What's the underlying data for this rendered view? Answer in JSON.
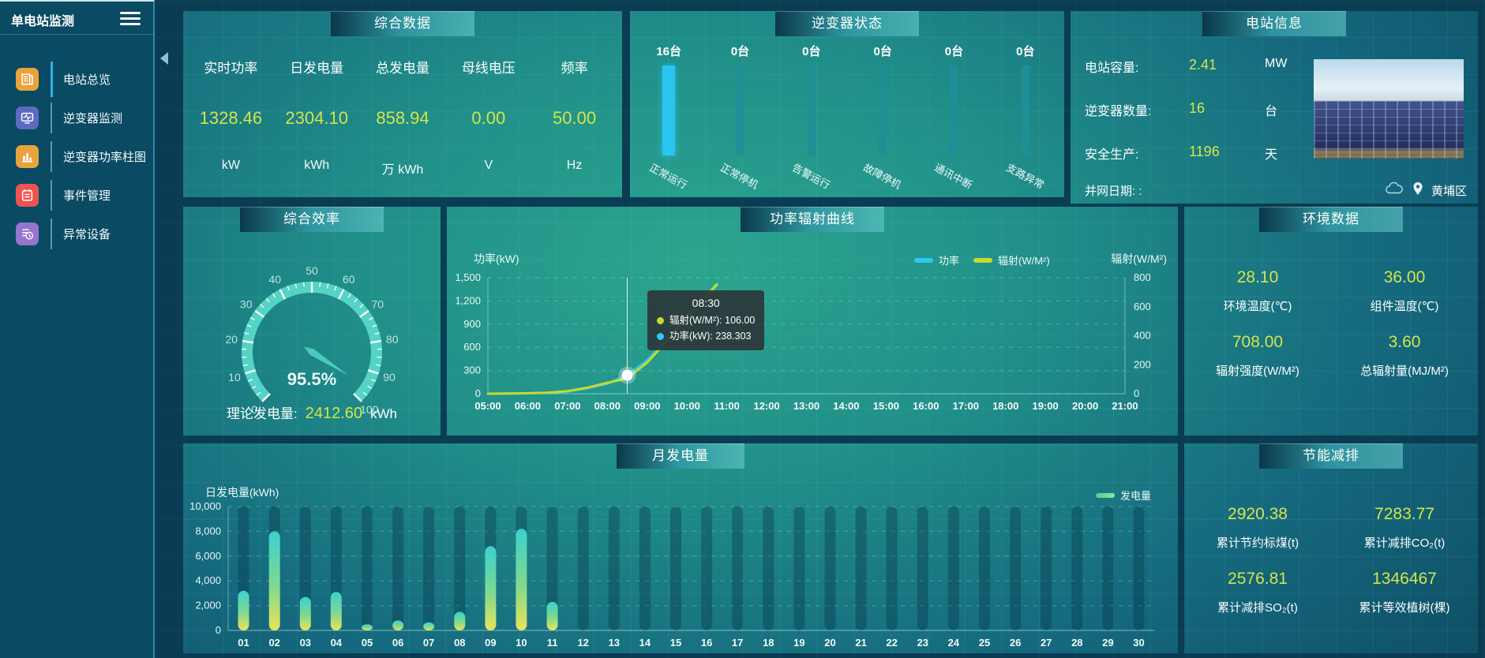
{
  "sidebar": {
    "title": "单电站监测",
    "items": [
      {
        "label": "电站总览",
        "icon": "report-icon",
        "color": "#e8a33d",
        "active": true
      },
      {
        "label": "逆变器监测",
        "icon": "inverter-monitor-icon",
        "color": "#5c6bc0",
        "active": false
      },
      {
        "label": "逆变器功率柱图",
        "icon": "bar-chart-icon",
        "color": "#e8a33d",
        "active": false
      },
      {
        "label": "事件管理",
        "icon": "event-icon",
        "color": "#ef5350",
        "active": false
      },
      {
        "label": "异常设备",
        "icon": "abnormal-device-icon",
        "color": "#9575cd",
        "active": false
      }
    ]
  },
  "panels": {
    "summary": {
      "title": "综合数据",
      "stats": [
        {
          "label": "实时功率",
          "value": "1328.46",
          "unit": "kW"
        },
        {
          "label": "日发电量",
          "value": "2304.10",
          "unit": "kWh"
        },
        {
          "label": "总发电量",
          "value": "858.94",
          "unit": "万 kWh"
        },
        {
          "label": "母线电压",
          "value": "0.00",
          "unit": "V"
        },
        {
          "label": "频率",
          "value": "50.00",
          "unit": "Hz"
        }
      ]
    },
    "inverter_status": {
      "title": "逆变器状态",
      "bars": [
        {
          "count": "16台",
          "label": "正常运行",
          "highlight": true
        },
        {
          "count": "0台",
          "label": "正常停机",
          "highlight": false
        },
        {
          "count": "0台",
          "label": "告警运行",
          "highlight": false
        },
        {
          "count": "0台",
          "label": "故障停机",
          "highlight": false
        },
        {
          "count": "0台",
          "label": "通讯中断",
          "highlight": false
        },
        {
          "count": "0台",
          "label": "支路异常",
          "highlight": false
        }
      ]
    },
    "station_info": {
      "title": "电站信息",
      "rows": [
        {
          "label": "电站容量:",
          "value": "2.41",
          "unit": "MW"
        },
        {
          "label": "逆变器数量:",
          "value": "16",
          "unit": "台"
        },
        {
          "label": "安全生产:",
          "value": "1196",
          "unit": "天"
        }
      ],
      "grid_date_label": "并网日期: :",
      "location": "黄埔区"
    },
    "efficiency": {
      "title": "综合效率",
      "theory_label": "理论发电量:",
      "theory_value": "2412.60",
      "theory_unit": "kWh"
    },
    "power_radiation": {
      "title": "功率辐射曲线"
    },
    "environment": {
      "title": "环境数据",
      "stats": [
        {
          "value": "28.10",
          "label": "环境温度(℃)"
        },
        {
          "value": "36.00",
          "label": "组件温度(℃)"
        },
        {
          "value": "708.00",
          "label": "辐射强度(W/M²)"
        },
        {
          "value": "3.60",
          "label": "总辐射量(MJ/M²)"
        }
      ]
    },
    "monthly": {
      "title": "月发电量"
    },
    "saving": {
      "title": "节能减排",
      "stats": [
        {
          "value": "2920.38",
          "label": "累计节约标煤(t)"
        },
        {
          "value": "7283.77",
          "label": "累计减排CO₂(t)"
        },
        {
          "value": "2576.81",
          "label": "累计减排SO₂(t)"
        },
        {
          "value": "1346467",
          "label": "累计等效植树(棵)"
        }
      ]
    }
  },
  "chart_data": [
    {
      "type": "line",
      "title": "功率辐射曲线",
      "x": [
        5,
        5.5,
        6,
        6.5,
        7,
        7.5,
        8,
        8.5,
        9,
        9.5,
        10,
        10.5,
        10.75
      ],
      "x_range": [
        5,
        21
      ],
      "x_ticks": [
        "05:00",
        "06:00",
        "07:00",
        "08:00",
        "09:00",
        "10:00",
        "11:00",
        "12:00",
        "13:00",
        "14:00",
        "15:00",
        "16:00",
        "17:00",
        "18:00",
        "19:00",
        "20:00",
        "21:00"
      ],
      "ylabel_left": "功率(kW)",
      "ylabel_right": "辐射(W/M²)",
      "ylim_left": [
        0,
        1500
      ],
      "yticks_left": {
        "values": [
          0,
          300,
          600,
          900,
          1200,
          1500
        ],
        "labels": [
          "0",
          "300",
          "600",
          "900",
          "1,200",
          "1,500"
        ]
      },
      "ylim_right": [
        0,
        800
      ],
      "yticks_right": {
        "values": [
          0,
          200,
          400,
          600,
          800
        ],
        "labels": [
          "0",
          "200",
          "400",
          "600",
          "800"
        ]
      },
      "legend_position": "top",
      "grid": "dashed-horizontal",
      "series": [
        {
          "name": "功率",
          "color": "#2ec9f2",
          "axis": "left",
          "values": [
            0,
            2,
            5,
            12,
            30,
            70,
            130,
            238.303,
            430,
            700,
            1000,
            1280,
            1400
          ]
        },
        {
          "name": "辐射(W/M²)",
          "color": "#c8d832",
          "axis": "right",
          "values": [
            0,
            1,
            3,
            7,
            18,
            42,
            75,
            106,
            215,
            365,
            530,
            680,
            755
          ]
        }
      ],
      "tooltip": {
        "x": 8.5,
        "time": "08:30",
        "rows": [
          {
            "name": "辐射(W/M²)",
            "value": "106.00",
            "color": "#c8d832"
          },
          {
            "name": "功率(kW)",
            "value": "238.303",
            "color": "#2ec9f2"
          }
        ]
      }
    },
    {
      "type": "bar",
      "title": "月发电量",
      "ylabel": "日发电量(kWh)",
      "legend": "发电量",
      "categories": [
        "01",
        "02",
        "03",
        "04",
        "05",
        "06",
        "07",
        "08",
        "09",
        "10",
        "11",
        "12",
        "13",
        "14",
        "15",
        "16",
        "17",
        "18",
        "19",
        "20",
        "21",
        "22",
        "23",
        "24",
        "25",
        "26",
        "27",
        "28",
        "29",
        "30"
      ],
      "values": [
        3200,
        8000,
        2700,
        3100,
        500,
        800,
        650,
        1500,
        6800,
        8200,
        2300,
        0,
        0,
        0,
        0,
        0,
        0,
        0,
        0,
        0,
        0,
        0,
        0,
        0,
        0,
        0,
        0,
        0,
        0,
        0
      ],
      "ylim": [
        0,
        10000
      ],
      "yticks": {
        "values": [
          0,
          2000,
          4000,
          6000,
          8000,
          10000
        ],
        "labels": [
          "0",
          "2,000",
          "4,000",
          "6,000",
          "8,000",
          "10,000"
        ]
      },
      "bar_gradient": [
        "#3ad1cf",
        "#7fd98e",
        "#e9e45c"
      ],
      "grid": "dashed-horizontal"
    },
    {
      "type": "gauge",
      "title": "综合效率",
      "value": 95.5,
      "label": "95.5%",
      "min": 0,
      "max": 100,
      "tick_step": 10,
      "color": "#58d8c9"
    }
  ]
}
